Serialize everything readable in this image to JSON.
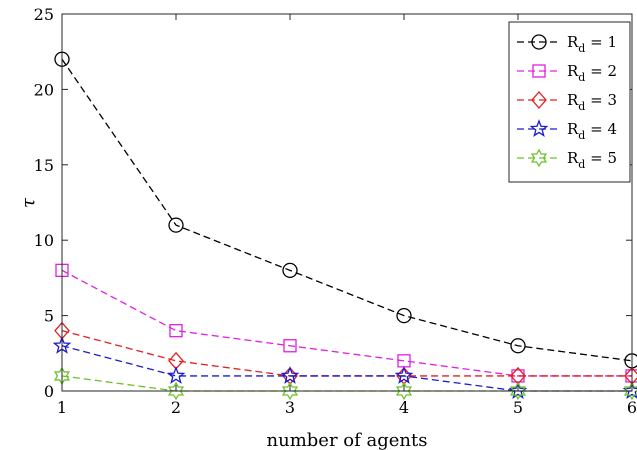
{
  "chart_data": {
    "type": "line",
    "title": "",
    "xlabel": "number of agents",
    "ylabel": "τ",
    "x": [
      1,
      2,
      3,
      4,
      5,
      6
    ],
    "xlim": [
      1,
      6
    ],
    "ylim": [
      0,
      25
    ],
    "xticks": [
      "1",
      "2",
      "3",
      "4",
      "5",
      "6"
    ],
    "yticks": [
      "0",
      "5",
      "10",
      "15",
      "20",
      "25"
    ],
    "grid": false,
    "legend_position": "top-right",
    "series": [
      {
        "name": "R",
        "sub": "d",
        "suffix": " = 1",
        "marker": "circle",
        "color": "#000000",
        "values": [
          22,
          11,
          8,
          5,
          3,
          2
        ]
      },
      {
        "name": "R",
        "sub": "d",
        "suffix": " = 2",
        "marker": "square",
        "color": "#e020e0",
        "values": [
          8,
          4,
          3,
          2,
          1,
          1
        ]
      },
      {
        "name": "R",
        "sub": "d",
        "suffix": " = 3",
        "marker": "diamond",
        "color": "#e02020",
        "values": [
          4,
          2,
          1,
          1,
          1,
          1
        ]
      },
      {
        "name": "R",
        "sub": "d",
        "suffix": " = 4",
        "marker": "pentagram",
        "color": "#1c1ccc",
        "values": [
          3,
          1,
          1,
          1,
          0,
          0
        ]
      },
      {
        "name": "R",
        "sub": "d",
        "suffix": " = 5",
        "marker": "hexagram",
        "color": "#6cc22c",
        "values": [
          1,
          0,
          0,
          0,
          0,
          0
        ]
      }
    ]
  }
}
